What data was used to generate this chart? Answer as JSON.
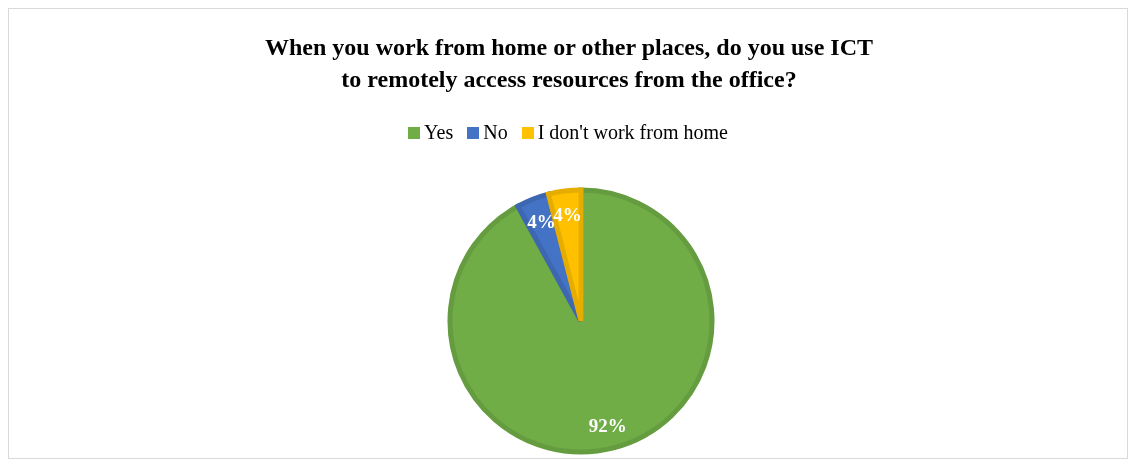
{
  "chart_data": {
    "type": "pie",
    "title": "When you work from home or other places, do you use ICT to remotely access resources from the office?",
    "categories": [
      "Yes",
      "No",
      "I don't work from home"
    ],
    "values": [
      92,
      4,
      4
    ],
    "colors": [
      "#70ad47",
      "#4472c4",
      "#ffc000"
    ],
    "value_labels": [
      "92%",
      "4%",
      "4%"
    ],
    "legend": "top"
  }
}
